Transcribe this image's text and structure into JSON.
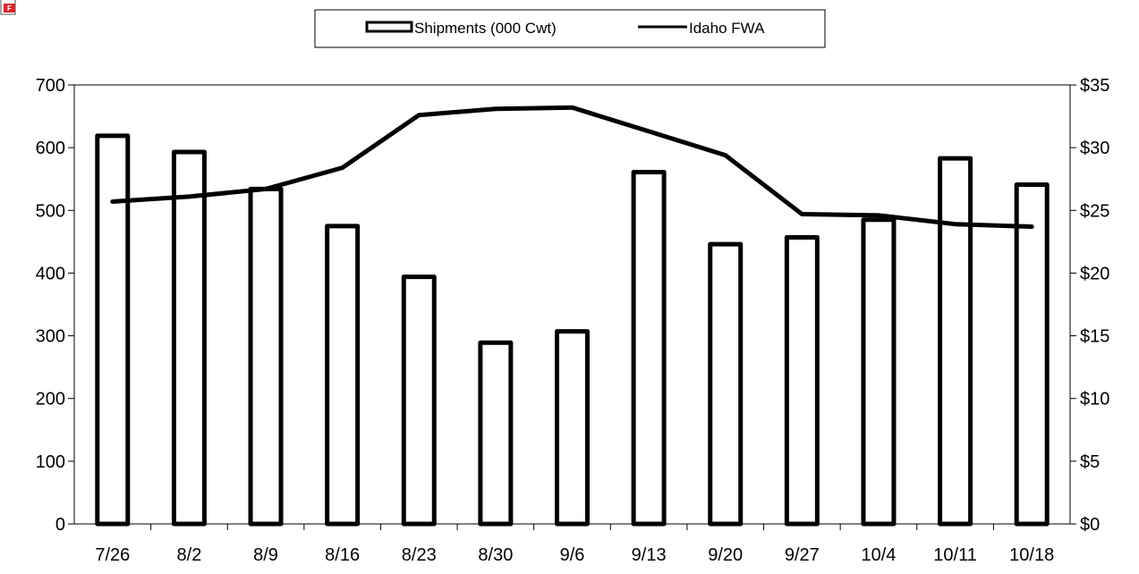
{
  "icons": {
    "corner_icon": "pdf-file-icon"
  },
  "colors": {
    "ink": "#000000",
    "background": "#ffffff",
    "pdf_icon_red": "#d42a2a"
  },
  "chart_data": {
    "type": "bar",
    "categories": [
      "7/26",
      "8/2",
      "8/9",
      "8/16",
      "8/23",
      "8/30",
      "9/6",
      "9/13",
      "9/20",
      "9/27",
      "10/4",
      "10/11",
      "10/18"
    ],
    "series": [
      {
        "name": "Shipments (000 Cwt)",
        "type": "bar",
        "axis": "left",
        "values": [
          619,
          593,
          534,
          475,
          394,
          289,
          307,
          561,
          446,
          457,
          485,
          583,
          541
        ]
      },
      {
        "name": "Idaho FWA",
        "type": "line",
        "axis": "right",
        "values": [
          25.7,
          26.1,
          26.7,
          28.4,
          32.6,
          33.1,
          33.2,
          31.3,
          29.4,
          24.7,
          24.6,
          23.9,
          23.7
        ]
      }
    ],
    "y_left": {
      "ylim": [
        0,
        700
      ],
      "ticks": [
        "0",
        "100",
        "200",
        "300",
        "400",
        "500",
        "600",
        "700"
      ]
    },
    "y_right": {
      "ylim": [
        0,
        35
      ],
      "ticks": [
        "$0",
        "$5",
        "$10",
        "$15",
        "$20",
        "$25",
        "$30",
        "$35"
      ]
    },
    "grid": false,
    "legend_position": "top-center"
  }
}
